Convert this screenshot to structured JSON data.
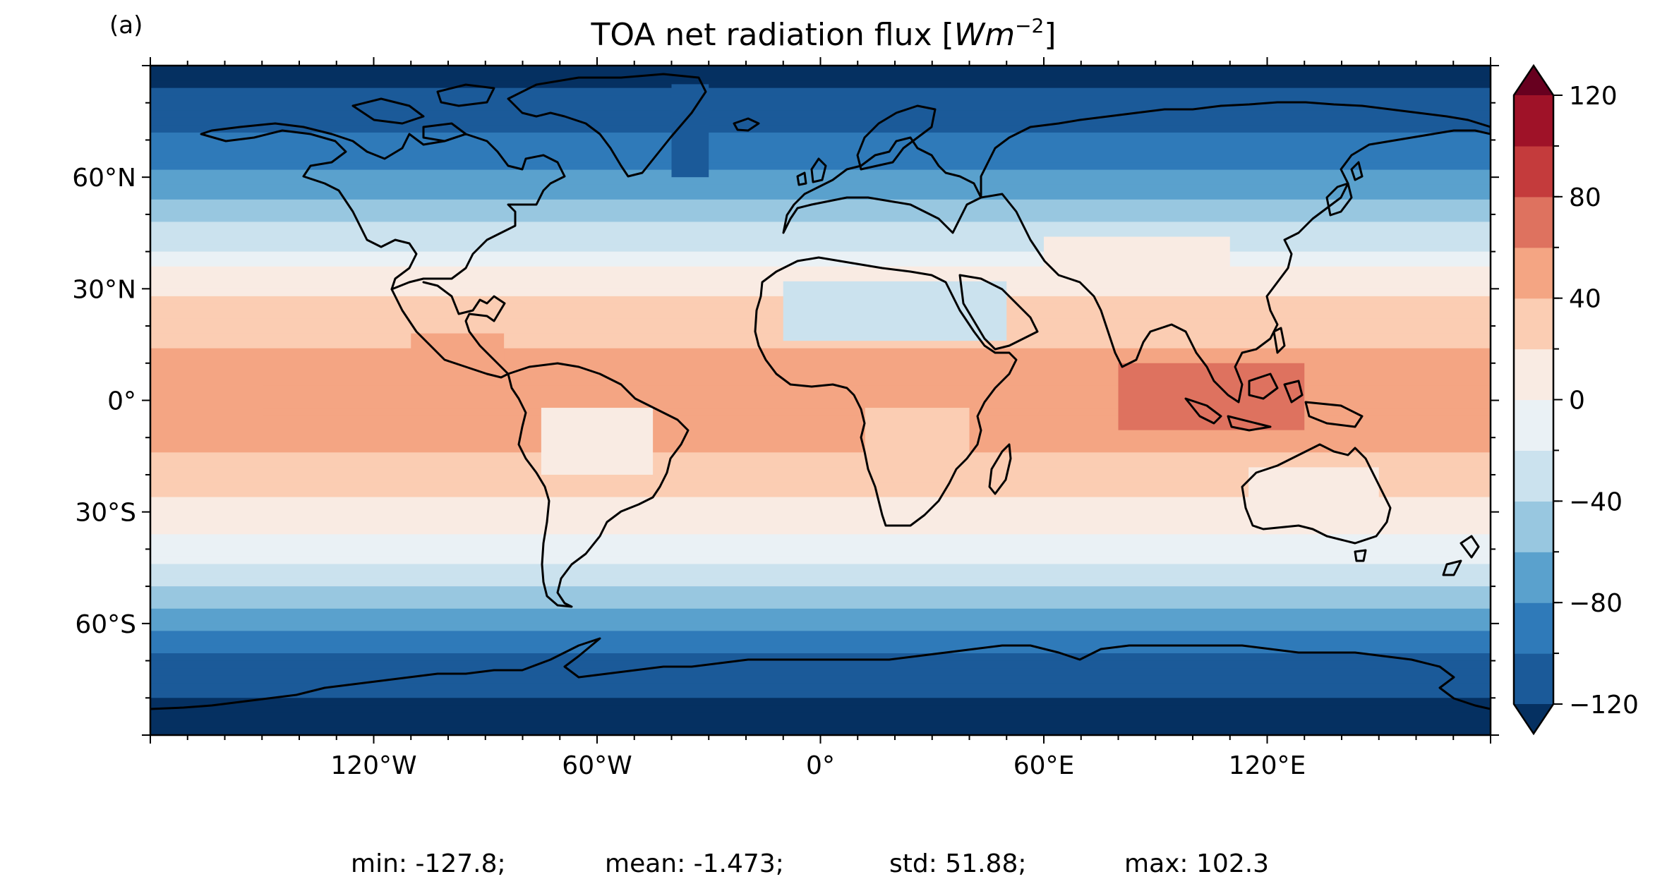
{
  "panel_label": "(a)",
  "title": {
    "main": "TOA net radiation flux [",
    "unit_base": "Wm",
    "unit_exp": "−2",
    "close": "]"
  },
  "map": {
    "projection": "equirectangular",
    "lon_range": [
      -180,
      180
    ],
    "lat_range": [
      -90,
      90
    ],
    "coastlines": true,
    "lon_ticks": [
      {
        "value": -120,
        "label": "120°W"
      },
      {
        "value": -60,
        "label": "60°W"
      },
      {
        "value": 0,
        "label": "0°"
      },
      {
        "value": 60,
        "label": "60°E"
      },
      {
        "value": 120,
        "label": "120°E"
      }
    ],
    "lat_ticks": [
      {
        "value": 60,
        "label": "60°N"
      },
      {
        "value": 30,
        "label": "30°N"
      },
      {
        "value": 0,
        "label": "0°"
      },
      {
        "value": -30,
        "label": "30°S"
      },
      {
        "value": -60,
        "label": "60°S"
      }
    ]
  },
  "colorbar": {
    "cmap": "RdBu_r",
    "range": [
      -120,
      120
    ],
    "step": 20,
    "extend": "both",
    "ticks": [
      {
        "value": 120,
        "label": "120"
      },
      {
        "value": 80,
        "label": "80"
      },
      {
        "value": 40,
        "label": "40"
      },
      {
        "value": 0,
        "label": "0"
      },
      {
        "value": -40,
        "label": "−40"
      },
      {
        "value": -80,
        "label": "−80"
      },
      {
        "value": -120,
        "label": "−120"
      }
    ],
    "colors": [
      "#053061",
      "#1b5a99",
      "#2f7ab9",
      "#5aa1cd",
      "#98c7e0",
      "#cbe2ee",
      "#eaf1f5",
      "#f9ebe3",
      "#fbcdb3",
      "#f4a583",
      "#de725f",
      "#c43b3c",
      "#9f1228",
      "#67001f"
    ]
  },
  "stats": {
    "min": "min: -127.8;",
    "mean": "mean: -1.473;",
    "std": "std: 51.88;",
    "max": "max: 102.3"
  }
}
